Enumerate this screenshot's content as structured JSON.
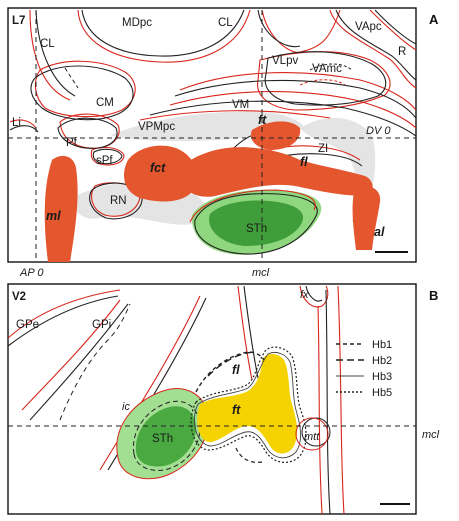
{
  "panel_a": {
    "panel_letter": "A",
    "section_label": "L7",
    "regions": {
      "cl_left": "CL",
      "mdpc": "MDpc",
      "cl_right": "CL",
      "vapc": "VApc",
      "r": "R",
      "vlpv": "VLpv",
      "vamc": "VAmc",
      "cm": "CM",
      "vm": "VM",
      "li": "Li",
      "pf": "Pf",
      "vpmpc": "VPMpc",
      "ft": "ft",
      "spf": "sPf",
      "fct": "fct",
      "fl": "fl",
      "zi": "ZI",
      "rn": "RN",
      "ml": "ml",
      "sth": "STh",
      "al": "al"
    },
    "dv_label": "DV 0",
    "ap_label": "AP 0",
    "mcl_label": "mcl"
  },
  "panel_b": {
    "panel_letter": "B",
    "section_label": "V2",
    "regions": {
      "fx": "fx",
      "gpe": "GPe",
      "gpi": "GPi",
      "fl": "fl",
      "ic": "ic",
      "ft": "ft",
      "sth": "STh",
      "mtt": "mtt"
    },
    "mcl_label": "mcl",
    "legend": [
      {
        "label": "Hb1",
        "style": "dashed-short"
      },
      {
        "label": "Hb2",
        "style": "dashed-long"
      },
      {
        "label": "Hb3",
        "style": "solid-thin"
      },
      {
        "label": "Hb5",
        "style": "dotted"
      }
    ]
  },
  "colors": {
    "outline_red": "#d8261c",
    "outline_black": "#222222",
    "fiber_orange": "#e4562d",
    "sth_light_green": "#8fd77e",
    "sth_dark_green": "#3f9e3a",
    "ft_yellow": "#f5d300",
    "shadow_gray": "#e4e4e4"
  }
}
